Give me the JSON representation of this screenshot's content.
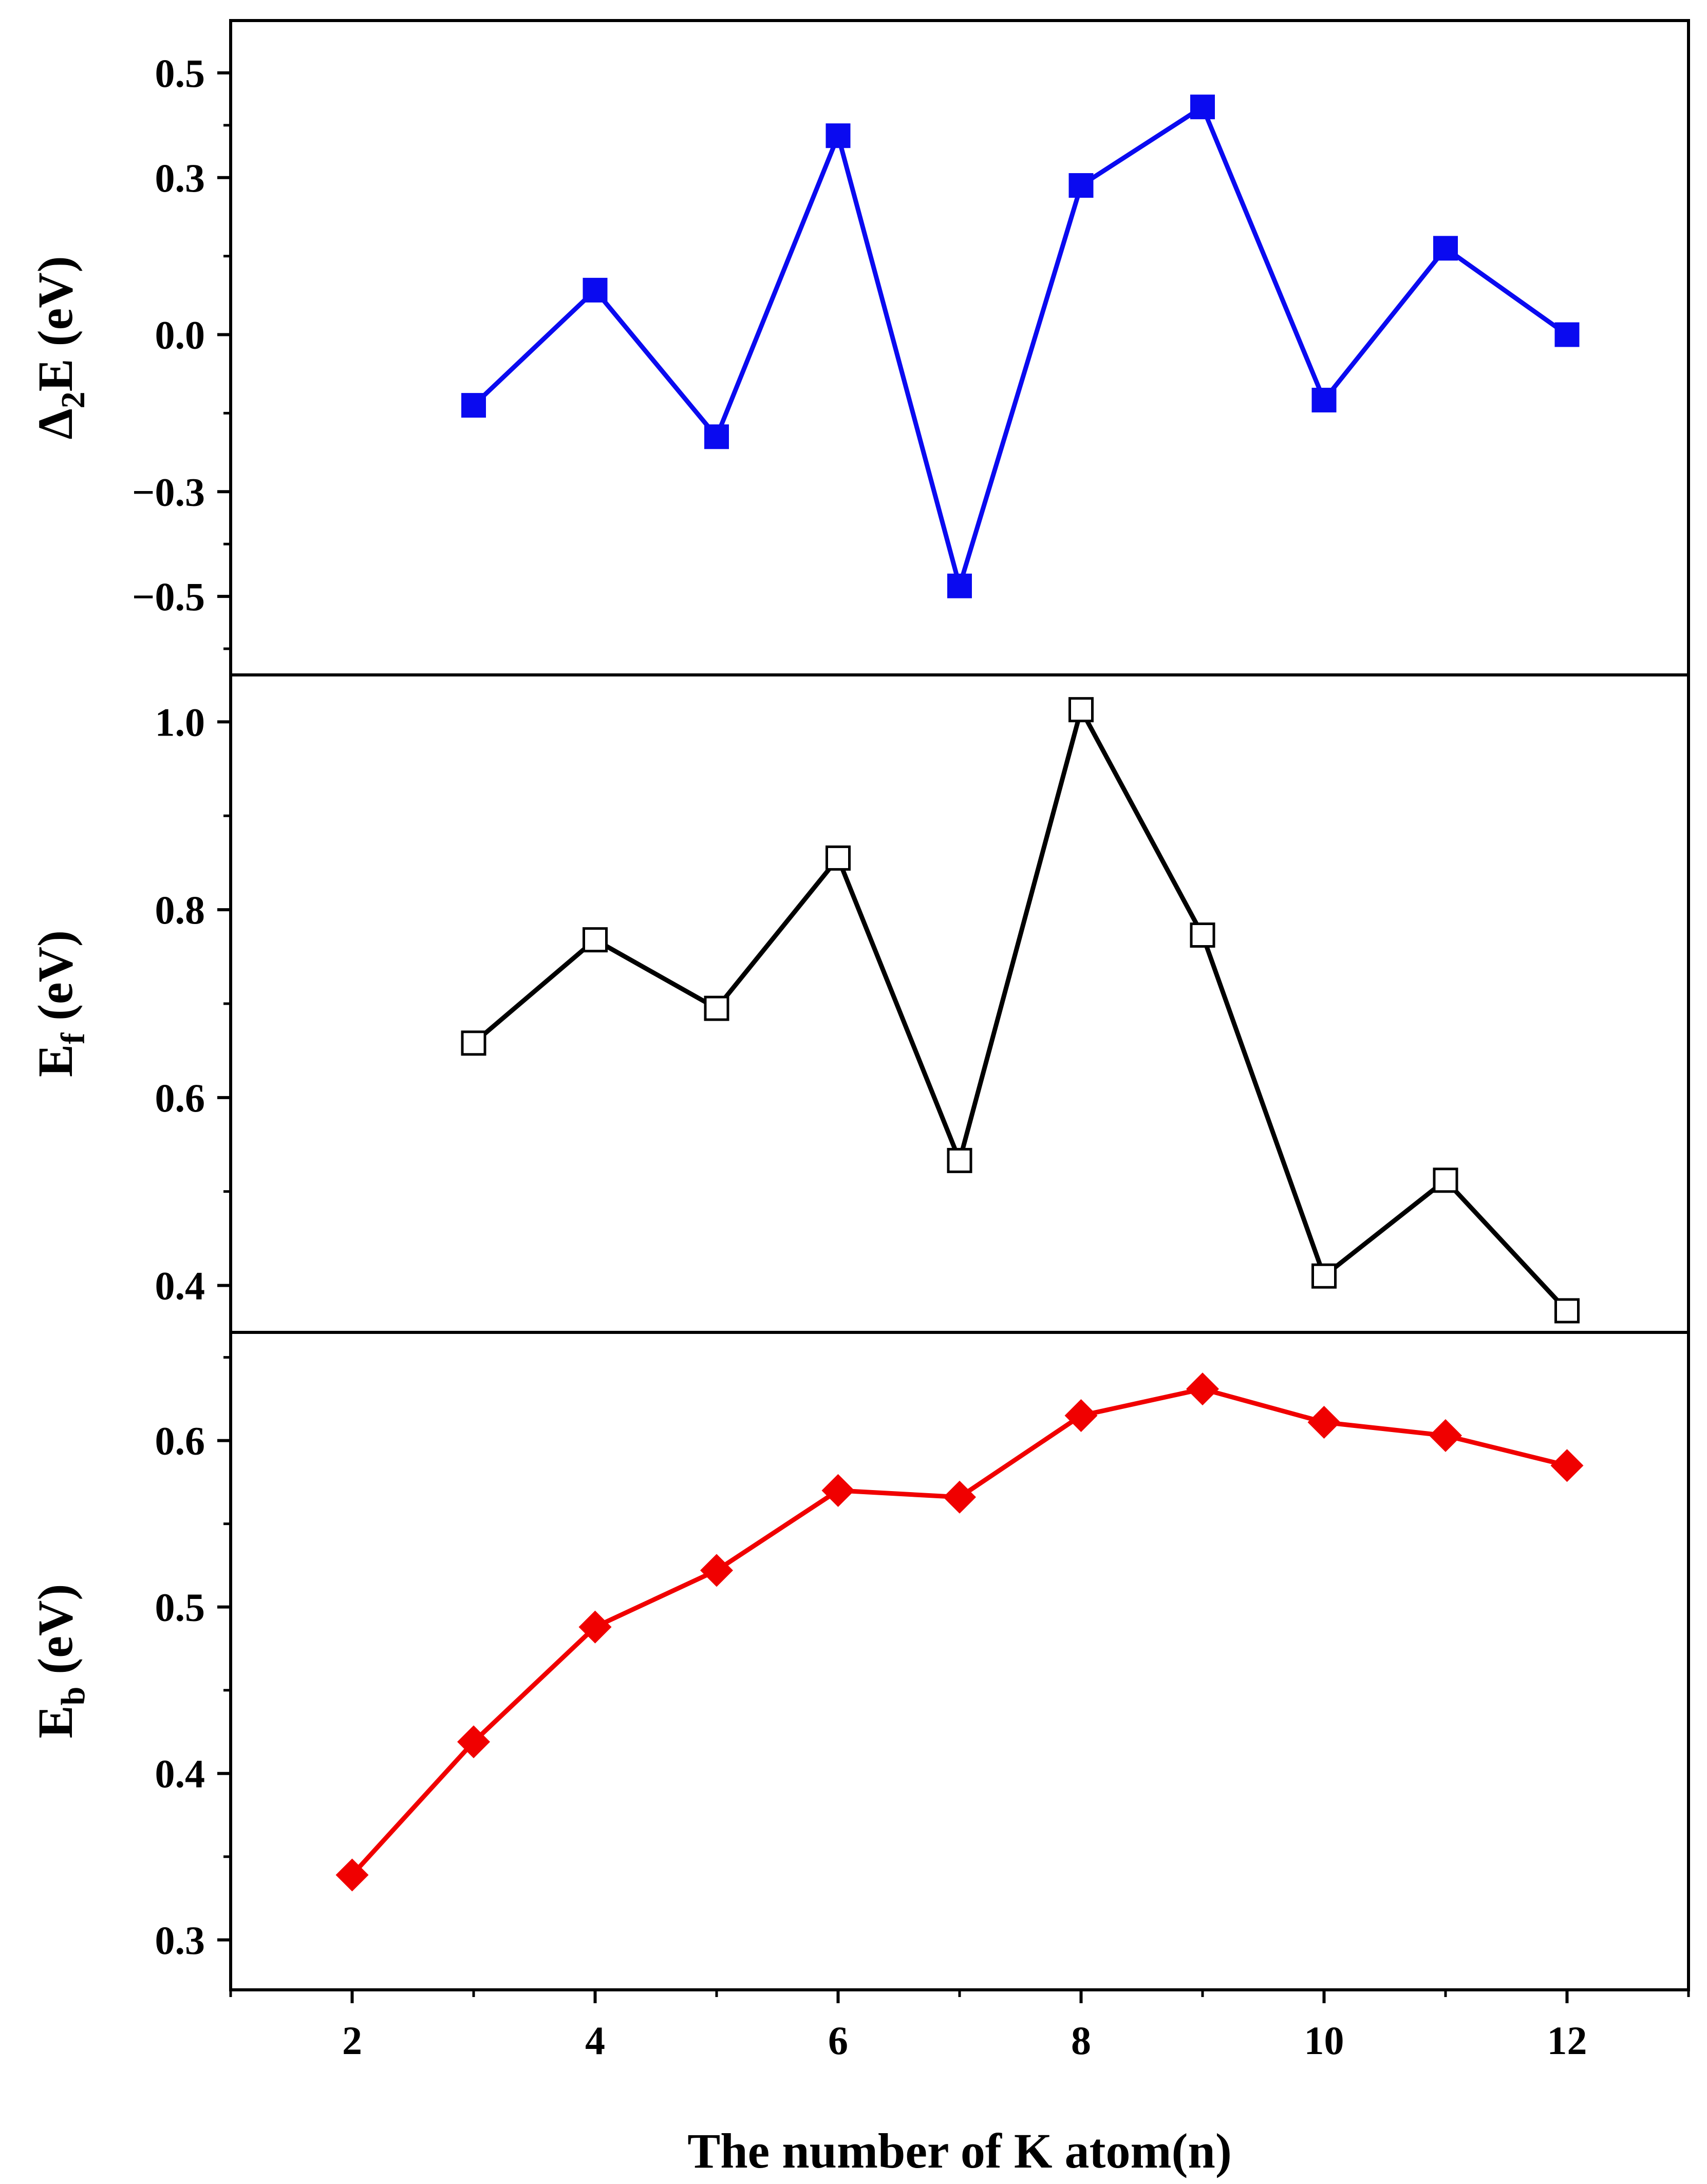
{
  "chart_data": [
    {
      "type": "line",
      "panel": "top",
      "ylabel": {
        "main": "Δ",
        "sub": "2",
        "rest": "E (eV)"
      },
      "ylim": [
        -0.65,
        0.6
      ],
      "yticks": [
        -0.5,
        -0.3,
        0.0,
        0.3,
        0.5
      ],
      "ytick_labels": [
        "−0.5",
        "−0.3",
        "0.0",
        "0.3",
        "0.5"
      ],
      "color": "#0a0af0",
      "marker": "square-filled",
      "x": [
        3,
        4,
        5,
        6,
        7,
        8,
        9,
        10,
        11,
        12
      ],
      "y": [
        -0.135,
        0.085,
        -0.195,
        0.38,
        -0.48,
        0.285,
        0.435,
        -0.125,
        0.165,
        0.0
      ]
    },
    {
      "type": "line",
      "panel": "middle",
      "ylabel": {
        "main": "E",
        "sub": "f",
        "rest": " (eV)"
      },
      "ylim": [
        0.35,
        1.05
      ],
      "yticks": [
        0.4,
        0.6,
        0.8,
        1.0
      ],
      "ytick_labels": [
        "0.4",
        "0.6",
        "0.8",
        "1.0"
      ],
      "color": "#000000",
      "marker": "square-open",
      "x": [
        3,
        4,
        5,
        6,
        7,
        8,
        9,
        10,
        11,
        12
      ],
      "y": [
        0.658,
        0.768,
        0.695,
        0.855,
        0.533,
        1.013,
        0.773,
        0.41,
        0.512,
        0.373
      ]
    },
    {
      "type": "line",
      "panel": "bottom",
      "ylabel": {
        "main": "E",
        "sub": "b",
        "rest": " (eV)"
      },
      "ylim": [
        0.27,
        0.665
      ],
      "yticks": [
        0.3,
        0.4,
        0.5,
        0.6
      ],
      "ytick_labels": [
        "0.3",
        "0.4",
        "0.5",
        "0.6"
      ],
      "color": "#f00000",
      "marker": "diamond-filled",
      "x": [
        2,
        3,
        4,
        5,
        6,
        7,
        8,
        9,
        10,
        11,
        12
      ],
      "y": [
        0.339,
        0.419,
        0.488,
        0.522,
        0.57,
        0.566,
        0.615,
        0.631,
        0.611,
        0.603,
        0.585
      ]
    }
  ],
  "xaxis": {
    "title": "The number of K atom(n)",
    "xlim": [
      1,
      13
    ],
    "ticks": [
      2,
      4,
      6,
      8,
      10,
      12
    ],
    "tick_labels": [
      "2",
      "4",
      "6",
      "8",
      "10",
      "12"
    ]
  }
}
